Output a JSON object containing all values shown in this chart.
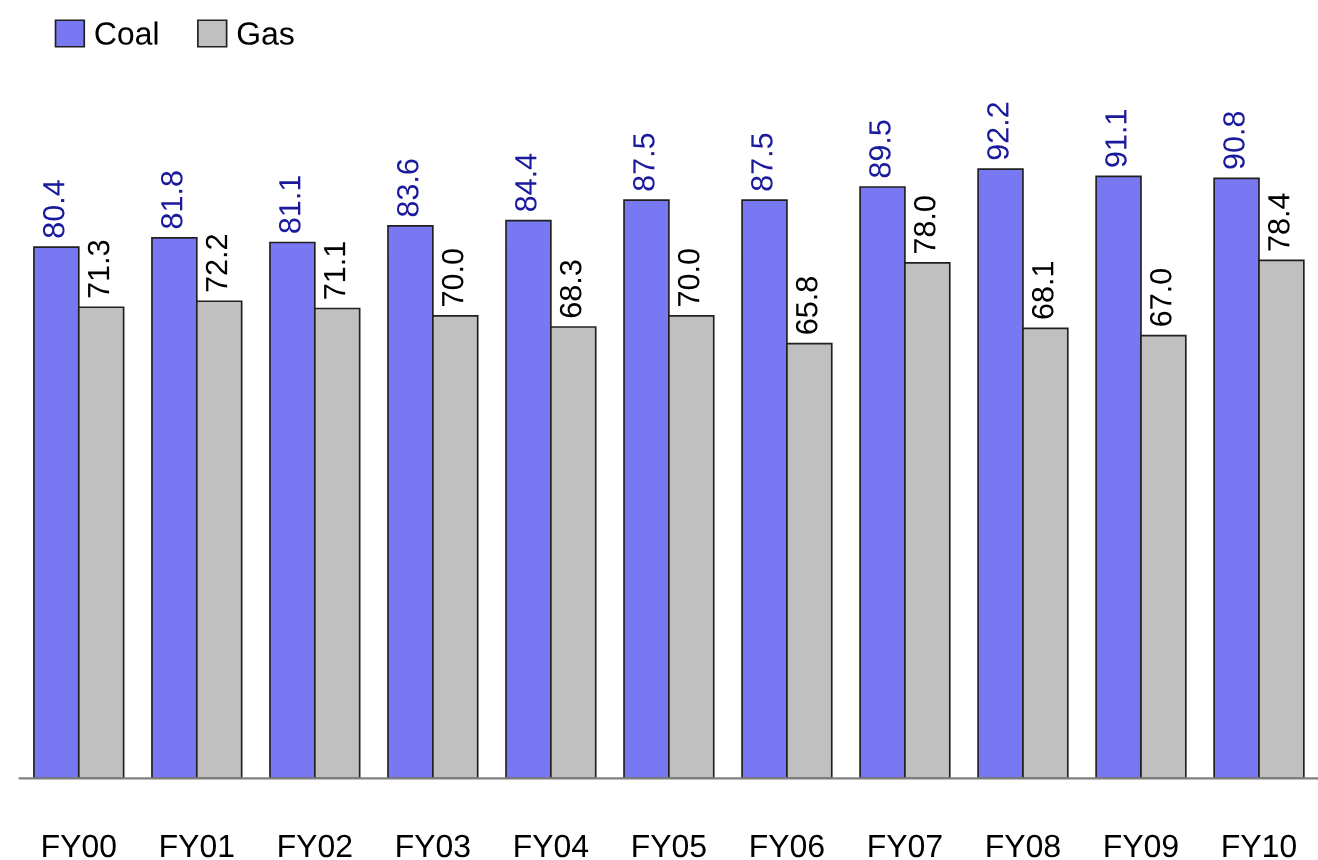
{
  "chart_data": {
    "type": "bar",
    "categories": [
      "FY00",
      "FY01",
      "FY02",
      "FY03",
      "FY04",
      "FY05",
      "FY06",
      "FY07",
      "FY08",
      "FY09",
      "FY10"
    ],
    "series": [
      {
        "name": "Coal",
        "color": "#7878f2",
        "values": [
          80.4,
          81.8,
          81.1,
          83.6,
          84.4,
          87.5,
          87.5,
          89.5,
          92.2,
          91.1,
          90.8
        ],
        "value_labels": [
          "80.4",
          "81.8",
          "81.1",
          "83.6",
          "84.4",
          "87.5",
          "87.5",
          "89.5",
          "92.2",
          "91.1",
          "90.8"
        ]
      },
      {
        "name": "Gas",
        "color": "#c0c0c0",
        "values": [
          71.3,
          72.2,
          71.1,
          70.0,
          68.3,
          70.0,
          65.8,
          78.0,
          68.1,
          67.0,
          78.4
        ],
        "value_labels": [
          "71.3",
          "72.2",
          "71.1",
          "70.0",
          "68.3",
          "70.0",
          "65.8",
          "78.0",
          "68.1",
          "67.0",
          "78.4"
        ]
      }
    ],
    "legend": "top left",
    "grid": false
  }
}
